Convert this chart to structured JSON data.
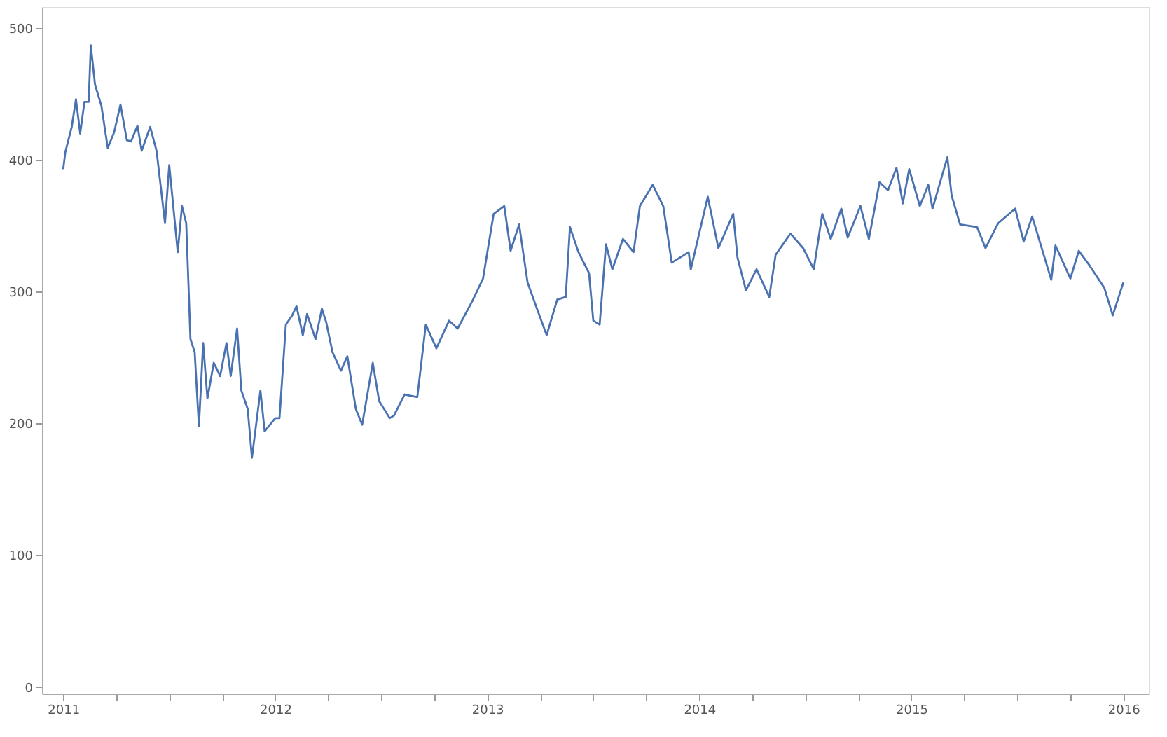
{
  "chart_data": {
    "type": "line",
    "x": [
      2011.0,
      2011.01,
      2011.04,
      2011.06,
      2011.08,
      2011.1,
      2011.12,
      2011.13,
      2011.15,
      2011.18,
      2011.21,
      2011.24,
      2011.27,
      2011.3,
      2011.32,
      2011.35,
      2011.37,
      2011.41,
      2011.44,
      2011.48,
      2011.5,
      2011.54,
      2011.56,
      2011.58,
      2011.6,
      2011.62,
      2011.64,
      2011.66,
      2011.68,
      2011.71,
      2011.74,
      2011.77,
      2011.79,
      2011.82,
      2011.84,
      2011.87,
      2011.89,
      2011.93,
      2011.95,
      2012.0,
      2012.02,
      2012.05,
      2012.08,
      2012.1,
      2012.13,
      2012.15,
      2012.19,
      2012.22,
      2012.24,
      2012.27,
      2012.31,
      2012.34,
      2012.38,
      2012.41,
      2012.46,
      2012.49,
      2012.54,
      2012.56,
      2012.61,
      2012.67,
      2012.71,
      2012.76,
      2012.82,
      2012.86,
      2012.93,
      2012.98,
      2013.03,
      2013.08,
      2013.11,
      2013.15,
      2013.19,
      2013.23,
      2013.28,
      2013.33,
      2013.37,
      2013.39,
      2013.43,
      2013.48,
      2013.5,
      2013.53,
      2013.56,
      2013.59,
      2013.64,
      2013.69,
      2013.72,
      2013.78,
      2013.83,
      2013.87,
      2013.95,
      2013.96,
      2014.04,
      2014.09,
      2014.16,
      2014.18,
      2014.22,
      2014.27,
      2014.33,
      2014.36,
      2014.43,
      2014.49,
      2014.54,
      2014.58,
      2014.62,
      2014.67,
      2014.7,
      2014.76,
      2014.8,
      2014.85,
      2014.89,
      2014.93,
      2014.96,
      2014.99,
      2015.04,
      2015.08,
      2015.1,
      2015.17,
      2015.19,
      2015.23,
      2015.31,
      2015.35,
      2015.41,
      2015.49,
      2015.53,
      2015.57,
      2015.66,
      2015.68,
      2015.75,
      2015.79,
      2015.84,
      2015.91,
      2015.95,
      2016.0
    ],
    "series": [
      {
        "color": "#4a72b0",
        "values": [
          393,
          406,
          425,
          446,
          420,
          444,
          444,
          487,
          457,
          441,
          409,
          421,
          442,
          415,
          414,
          426,
          407,
          425,
          407,
          352,
          396,
          330,
          365,
          352,
          264,
          254,
          198,
          261,
          219,
          246,
          236,
          261,
          236,
          272,
          225,
          211,
          174,
          225,
          194,
          204,
          204,
          275,
          282,
          289,
          267,
          283,
          264,
          287,
          277,
          254,
          240,
          251,
          211,
          199,
          246,
          217,
          204,
          206,
          222,
          220,
          275,
          257,
          278,
          272,
          293,
          310,
          359,
          365,
          331,
          351,
          307,
          289,
          267,
          294,
          296,
          349,
          330,
          314,
          278,
          275,
          336,
          317,
          340,
          330,
          365,
          381,
          365,
          322,
          330,
          317,
          372,
          333,
          359,
          326,
          301,
          317,
          296,
          328,
          344,
          333,
          317,
          359,
          340,
          363,
          341,
          365,
          340,
          383,
          377,
          394,
          367,
          393,
          365,
          381,
          363,
          402,
          373,
          351,
          349,
          333,
          352,
          363,
          338,
          357,
          309,
          335,
          310,
          331,
          320,
          303,
          282,
          307
        ]
      }
    ],
    "xlim": [
      2010.9,
      2016.12
    ],
    "xticks": [
      2011,
      {
        "value": 2011.25,
        "label": null
      },
      {
        "value": 2011.5,
        "label": null
      },
      {
        "value": 2011.75,
        "label": null
      },
      2012,
      {
        "value": 2012.25,
        "label": null
      },
      {
        "value": 2012.5,
        "label": null
      },
      {
        "value": 2012.75,
        "label": null
      },
      2013,
      {
        "value": 2013.25,
        "label": null
      },
      {
        "value": 2013.5,
        "label": null
      },
      {
        "value": 2013.75,
        "label": null
      },
      2014,
      {
        "value": 2014.25,
        "label": null
      },
      {
        "value": 2014.5,
        "label": null
      },
      {
        "value": 2014.75,
        "label": null
      },
      2015,
      {
        "value": 2015.25,
        "label": null
      },
      {
        "value": 2015.5,
        "label": null
      },
      {
        "value": 2015.75,
        "label": null
      },
      2016
    ],
    "ylim": [
      -5,
      516
    ],
    "yticks": [
      0,
      100,
      200,
      300,
      400,
      500
    ],
    "grid": false,
    "marker": "none",
    "line_style": "solid"
  }
}
